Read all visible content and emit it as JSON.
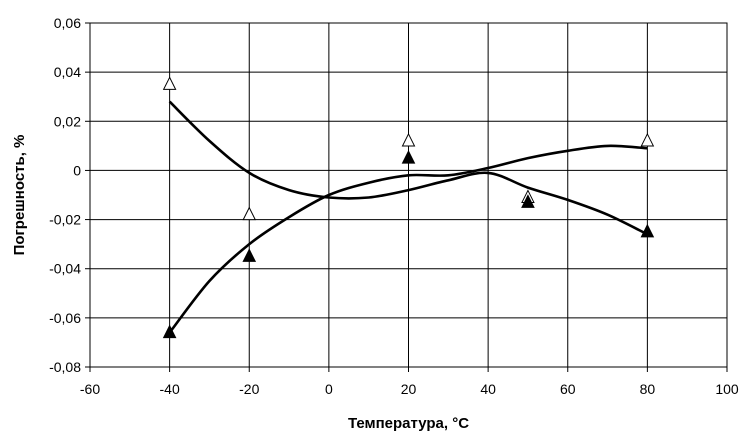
{
  "chart_data": {
    "type": "scatter",
    "title": "",
    "xlabel": "Температура, °C",
    "ylabel": "Погрешность, %",
    "xlim": [
      -60,
      100
    ],
    "ylim": [
      -0.08,
      0.06
    ],
    "x_ticks": [
      -60,
      -40,
      -20,
      0,
      20,
      40,
      60,
      80,
      100
    ],
    "x_tick_labels": [
      "-60",
      "-40",
      "-20",
      "0",
      "20",
      "40",
      "60",
      "80",
      "100"
    ],
    "y_ticks": [
      -0.08,
      -0.06,
      -0.04,
      -0.02,
      0,
      0.02,
      0.04,
      0.06
    ],
    "y_tick_labels": [
      "-0,08",
      "-0,06",
      "-0,04",
      "-0,02",
      "0",
      "0,02",
      "0,04",
      "0,06"
    ],
    "grid": true,
    "legend": "none",
    "series": [
      {
        "marker": "triangle-open",
        "color": "#000000",
        "points": [
          {
            "x": -40,
            "y": 0.035
          },
          {
            "x": -20,
            "y": -0.018
          },
          {
            "x": 20,
            "y": 0.012
          },
          {
            "x": 50,
            "y": -0.011
          },
          {
            "x": 80,
            "y": 0.012
          }
        ]
      },
      {
        "marker": "triangle-filled",
        "color": "#000000",
        "points": [
          {
            "x": -40,
            "y": -0.066
          },
          {
            "x": -20,
            "y": -0.035
          },
          {
            "x": 20,
            "y": 0.005
          },
          {
            "x": 50,
            "y": -0.013
          },
          {
            "x": 80,
            "y": -0.025
          }
        ]
      }
    ],
    "trend_lines": [
      {
        "color": "#000000",
        "points": [
          {
            "x": -40,
            "y": 0.028
          },
          {
            "x": -30,
            "y": 0.012
          },
          {
            "x": -20,
            "y": -0.001
          },
          {
            "x": -10,
            "y": -0.008
          },
          {
            "x": 0,
            "y": -0.011
          },
          {
            "x": 10,
            "y": -0.011
          },
          {
            "x": 20,
            "y": -0.008
          },
          {
            "x": 30,
            "y": -0.004
          },
          {
            "x": 40,
            "y": -0.001
          },
          {
            "x": 50,
            "y": -0.007
          },
          {
            "x": 60,
            "y": -0.012
          },
          {
            "x": 70,
            "y": -0.018
          },
          {
            "x": 80,
            "y": -0.026
          }
        ]
      },
      {
        "color": "#000000",
        "points": [
          {
            "x": -40,
            "y": -0.066
          },
          {
            "x": -30,
            "y": -0.045
          },
          {
            "x": -20,
            "y": -0.03
          },
          {
            "x": -10,
            "y": -0.019
          },
          {
            "x": 0,
            "y": -0.01
          },
          {
            "x": 10,
            "y": -0.005
          },
          {
            "x": 20,
            "y": -0.002
          },
          {
            "x": 30,
            "y": -0.002
          },
          {
            "x": 40,
            "y": 0.001
          },
          {
            "x": 50,
            "y": 0.005
          },
          {
            "x": 60,
            "y": 0.008
          },
          {
            "x": 70,
            "y": 0.01
          },
          {
            "x": 80,
            "y": 0.009
          }
        ]
      }
    ]
  }
}
